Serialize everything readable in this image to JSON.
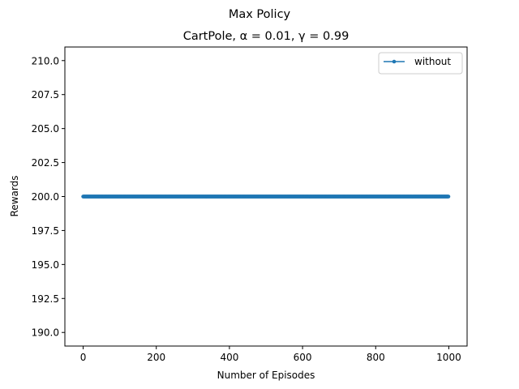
{
  "chart_data": {
    "type": "line",
    "suptitle": "Max Policy",
    "title": "CartPole, α = 0.01, γ = 0.99",
    "xlabel": "Number of Episodes",
    "ylabel": "Rewards",
    "xlim": [
      -50,
      1050
    ],
    "ylim": [
      189,
      211
    ],
    "xticks": [
      0,
      200,
      400,
      600,
      800,
      1000
    ],
    "yticks": [
      190.0,
      192.5,
      195.0,
      197.5,
      200.0,
      202.5,
      205.0,
      207.5,
      210.0
    ],
    "xtick_labels": [
      "0",
      "200",
      "400",
      "600",
      "800",
      "1000"
    ],
    "ytick_labels": [
      "190.0",
      "192.5",
      "195.0",
      "197.5",
      "200.0",
      "202.5",
      "205.0",
      "207.5",
      "210.0"
    ],
    "grid": false,
    "legend_position": "top-right",
    "series": [
      {
        "name": "without",
        "color": "#1f77b4",
        "marker": "dot",
        "x_start": 0,
        "x_end": 999,
        "x_step": 1,
        "constant_value": 200
      }
    ]
  }
}
